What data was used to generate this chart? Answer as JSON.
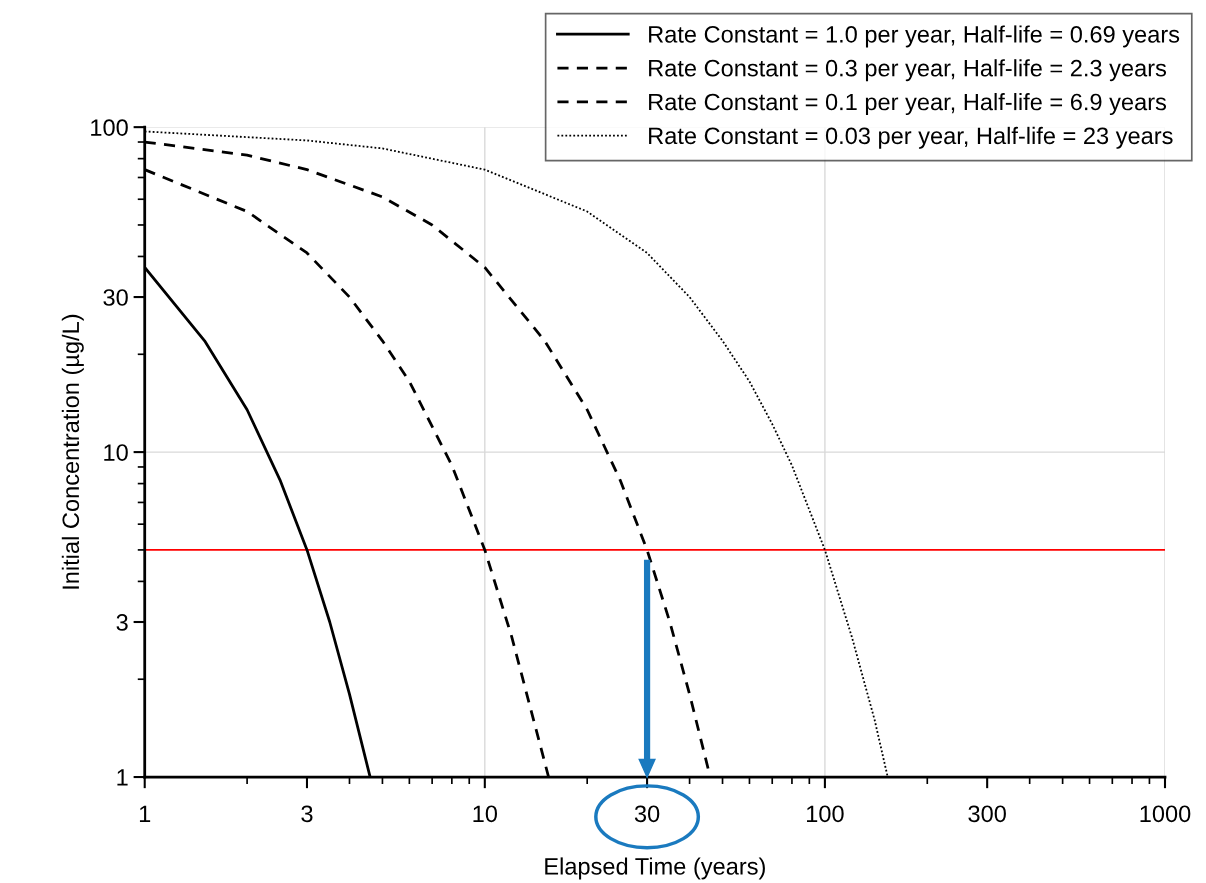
{
  "chart_data": {
    "type": "line",
    "xlabel": "Elapsed Time (years)",
    "ylabel": "Initial Concentration (µg/L)",
    "log": "xy",
    "xlim": [
      1,
      1000
    ],
    "ylim": [
      1,
      100
    ],
    "xticks": [
      1,
      3,
      10,
      30,
      100,
      300,
      1000
    ],
    "yticks": [
      1,
      3,
      10,
      30,
      100
    ],
    "grid": true,
    "legend": "top right",
    "series": [
      {
        "name": "Rate Constant = 1.0 per year, Half-life = 0.69 years",
        "color": "#000000",
        "line_style": "solid",
        "x": [
          1,
          1.5,
          2,
          2.5,
          3,
          3.5,
          4,
          4.6
        ],
        "values": [
          37,
          22,
          13.5,
          8.2,
          5,
          3,
          1.8,
          1.0
        ]
      },
      {
        "name": "Rate Constant = 0.3 per year, Half-life = 2.3 years",
        "color": "#000000",
        "line_style": "dashed",
        "x": [
          1,
          2,
          3,
          4,
          5,
          6,
          8,
          10,
          12,
          15.4
        ],
        "values": [
          74,
          55,
          41,
          30,
          22,
          16.5,
          9.1,
          5,
          2.7,
          1.0
        ]
      },
      {
        "name": "Rate Constant = 0.1 per year, Half-life = 6.9 years",
        "color": "#000000",
        "line_style": "dashed",
        "x": [
          1,
          2,
          3,
          5,
          7,
          10,
          15,
          20,
          25,
          30,
          35,
          40,
          46
        ],
        "values": [
          90,
          82,
          74,
          61,
          50,
          37,
          22,
          13.5,
          8.2,
          5,
          3,
          1.8,
          1.0
        ]
      },
      {
        "name": "Rate Constant = 0.03 per year, Half-life = 23 years",
        "color": "#000000",
        "line_style": "dotted",
        "x": [
          1,
          3,
          5,
          10,
          20,
          30,
          40,
          50,
          60,
          70,
          80,
          100,
          120,
          140,
          153
        ],
        "values": [
          97,
          91,
          86,
          74,
          55,
          41,
          30,
          22,
          16.5,
          12.2,
          9.1,
          5,
          2.7,
          1.5,
          1.0
        ]
      }
    ],
    "ref_lines": [
      {
        "axis": "y",
        "value": 5,
        "color": "#ff0000",
        "line_style": "solid"
      }
    ]
  }
}
